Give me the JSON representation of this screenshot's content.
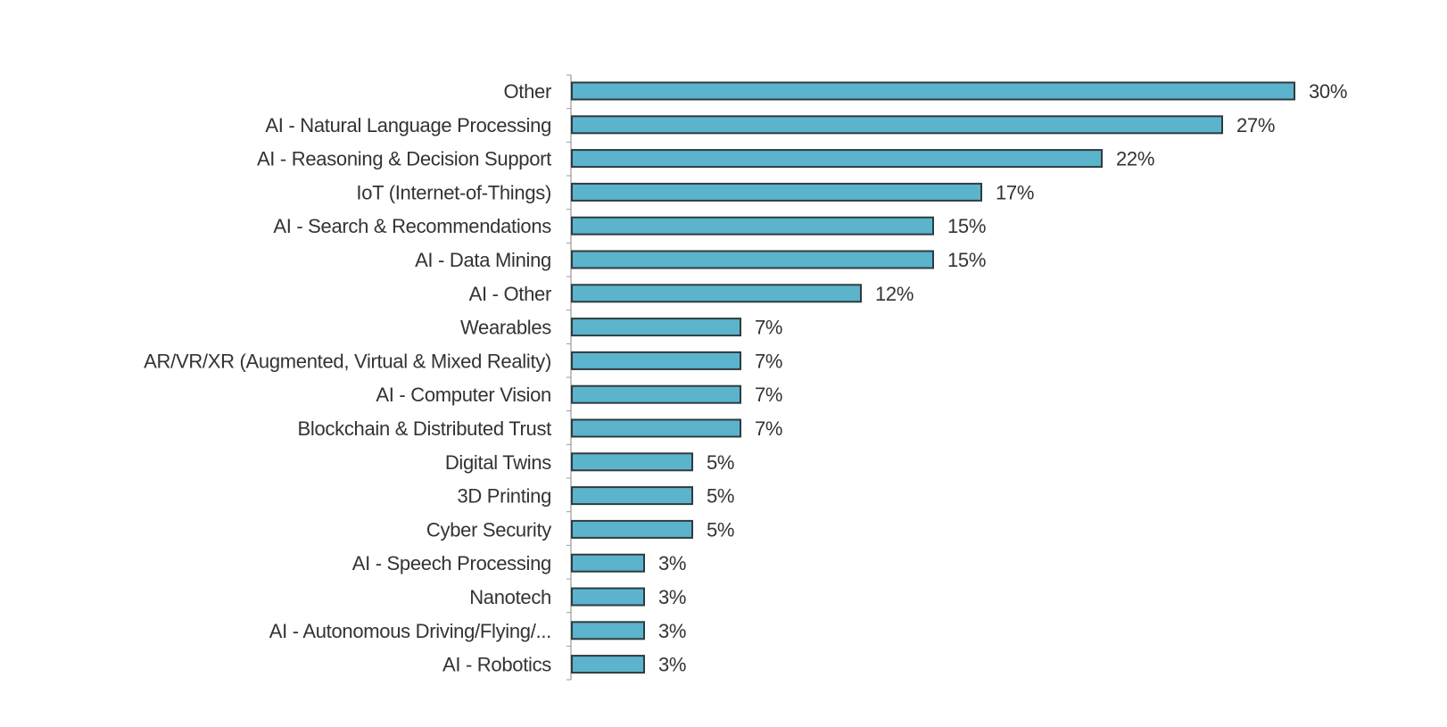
{
  "chart_data": {
    "type": "bar",
    "orientation": "horizontal",
    "title": "",
    "xlabel": "",
    "ylabel": "",
    "categories": [
      "Other",
      "AI - Natural Language Processing",
      "AI - Reasoning & Decision Support",
      "IoT (Internet-of-Things)",
      "AI - Search & Recommendations",
      "AI - Data Mining",
      "AI - Other",
      "Wearables",
      "AR/VR/XR (Augmented, Virtual & Mixed Reality)",
      "AI - Computer Vision",
      "Blockchain & Distributed Trust",
      "Digital Twins",
      "3D Printing",
      "Cyber Security",
      "AI - Speech Processing",
      "Nanotech",
      "AI - Autonomous Driving/Flying/...",
      "AI - Robotics"
    ],
    "values": [
      30,
      27,
      22,
      17,
      15,
      15,
      12,
      7,
      7,
      7,
      7,
      5,
      5,
      5,
      3,
      3,
      3,
      3
    ],
    "value_labels": [
      "30%",
      "27%",
      "22%",
      "17%",
      "15%",
      "15%",
      "12%",
      "7%",
      "7%",
      "7%",
      "7%",
      "5%",
      "5%",
      "5%",
      "3%",
      "3%",
      "3%",
      "3%"
    ],
    "unit": "%",
    "xlim": [
      0,
      30
    ],
    "grid": false,
    "legend": "none",
    "colors": {
      "bar_fill": "#5bb4cc",
      "bar_stroke": "#2e3b40",
      "axis": "#9a9a9a",
      "text": "#333333"
    }
  }
}
